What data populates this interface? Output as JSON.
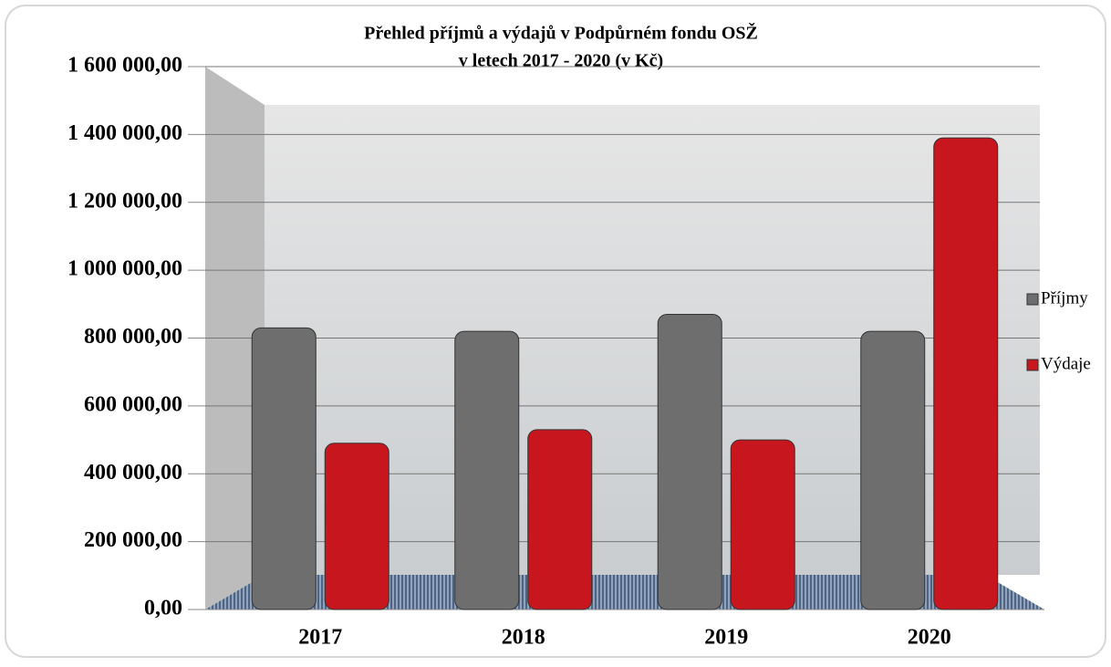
{
  "chart_data": {
    "type": "bar",
    "title": "Přehled příjmů a výdajů v Podpůrném fondu OSŽ",
    "subtitle": "v letech 2017 - 2020 (v Kč)",
    "categories": [
      "2017",
      "2018",
      "2019",
      "2020"
    ],
    "series": [
      {
        "name": "Příjmy",
        "color": "#6e6e6e",
        "values": [
          830000,
          820000,
          870000,
          820000
        ]
      },
      {
        "name": "Výdaje",
        "color": "#c8161e",
        "values": [
          490000,
          530000,
          500000,
          1390000
        ]
      }
    ],
    "ylim": [
      0,
      1600000
    ],
    "yticks": [
      {
        "value": 0,
        "label": "0,00"
      },
      {
        "value": 200000,
        "label": "200 000,00"
      },
      {
        "value": 400000,
        "label": "400 000,00"
      },
      {
        "value": 600000,
        "label": "600 000,00"
      },
      {
        "value": 800000,
        "label": "800 000,00"
      },
      {
        "value": 1000000,
        "label": "1 000 000,00"
      },
      {
        "value": 1200000,
        "label": "1 200 000,00"
      },
      {
        "value": 1400000,
        "label": "1 400 000,00"
      },
      {
        "value": 1600000,
        "label": "1 600 000,00"
      }
    ],
    "grid": true,
    "legend": "right"
  }
}
